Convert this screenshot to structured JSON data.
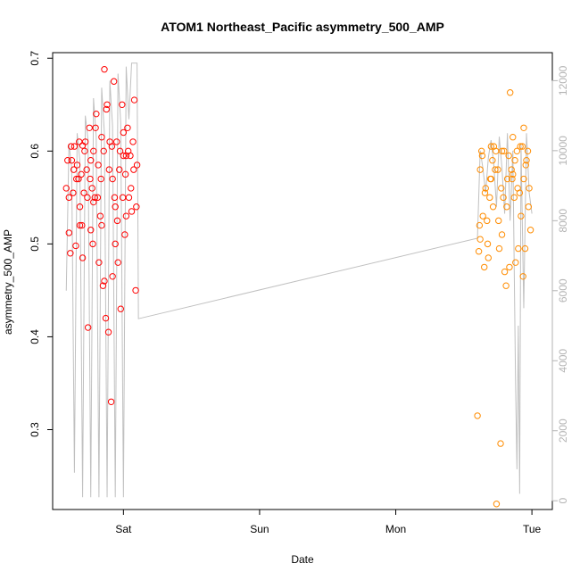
{
  "chart_data": {
    "type": "scatter",
    "title": "ATOM1 Northeast_Pacific asymmetry_500_AMP",
    "xlabel": "Date",
    "ylabel": "asymmetry_500_AMP",
    "x_ticks": [
      {
        "label": "Sat",
        "value": 1.0
      },
      {
        "label": "Sun",
        "value": 2.0
      },
      {
        "label": "Mon",
        "value": 3.0
      },
      {
        "label": "Tue",
        "value": 4.0
      }
    ],
    "xlim": [
      0.48,
      4.15
    ],
    "ylim": [
      0.214,
      0.706
    ],
    "y_ticks": [
      0.3,
      0.4,
      0.5,
      0.6,
      0.7
    ],
    "y2lim": [
      -250,
      12800
    ],
    "y2_ticks": [
      0,
      2000,
      4000,
      6000,
      8000,
      10000,
      12000
    ],
    "grid": false,
    "series": [
      {
        "color": "#ff0000",
        "marker": "open-circle",
        "points": [
          [
            0.58,
            0.56
          ],
          [
            0.59,
            0.59
          ],
          [
            0.6,
            0.512
          ],
          [
            0.61,
            0.49
          ],
          [
            0.62,
            0.59
          ],
          [
            0.63,
            0.555
          ],
          [
            0.64,
            0.605
          ],
          [
            0.65,
            0.498
          ],
          [
            0.66,
            0.585
          ],
          [
            0.67,
            0.57
          ],
          [
            0.68,
            0.52
          ],
          [
            0.69,
            0.575
          ],
          [
            0.7,
            0.606
          ],
          [
            0.71,
            0.555
          ],
          [
            0.72,
            0.61
          ],
          [
            0.73,
            0.58
          ],
          [
            0.74,
            0.41
          ],
          [
            0.75,
            0.625
          ],
          [
            0.76,
            0.515
          ],
          [
            0.77,
            0.56
          ],
          [
            0.78,
            0.6
          ],
          [
            0.79,
            0.55
          ],
          [
            0.8,
            0.64
          ],
          [
            0.81,
            0.55
          ],
          [
            0.82,
            0.48
          ],
          [
            0.83,
            0.53
          ],
          [
            0.84,
            0.615
          ],
          [
            0.85,
            0.455
          ],
          [
            0.86,
            0.688
          ],
          [
            0.87,
            0.42
          ],
          [
            0.88,
            0.65
          ],
          [
            0.89,
            0.405
          ],
          [
            0.9,
            0.61
          ],
          [
            0.91,
            0.33
          ],
          [
            0.92,
            0.465
          ],
          [
            0.93,
            0.675
          ],
          [
            0.94,
            0.54
          ],
          [
            0.95,
            0.61
          ],
          [
            0.96,
            0.48
          ],
          [
            0.97,
            0.58
          ],
          [
            0.98,
            0.43
          ],
          [
            0.99,
            0.65
          ],
          [
            1.0,
            0.62
          ],
          [
            1.01,
            0.51
          ],
          [
            1.02,
            0.595
          ],
          [
            1.03,
            0.625
          ],
          [
            1.04,
            0.55
          ],
          [
            1.05,
            0.595
          ],
          [
            1.06,
            0.535
          ],
          [
            1.07,
            0.61
          ],
          [
            1.08,
            0.655
          ],
          [
            1.09,
            0.45
          ],
          [
            1.1,
            0.585
          ],
          [
            0.615,
            0.605
          ],
          [
            0.635,
            0.58
          ],
          [
            0.655,
            0.57
          ],
          [
            0.675,
            0.61
          ],
          [
            0.695,
            0.52
          ],
          [
            0.715,
            0.6
          ],
          [
            0.735,
            0.55
          ],
          [
            0.755,
            0.57
          ],
          [
            0.775,
            0.5
          ],
          [
            0.795,
            0.625
          ],
          [
            0.815,
            0.585
          ],
          [
            0.835,
            0.57
          ],
          [
            0.855,
            0.6
          ],
          [
            0.875,
            0.645
          ],
          [
            0.895,
            0.58
          ],
          [
            0.915,
            0.605
          ],
          [
            0.935,
            0.55
          ],
          [
            0.955,
            0.525
          ],
          [
            0.975,
            0.6
          ],
          [
            0.995,
            0.55
          ],
          [
            1.015,
            0.575
          ],
          [
            1.035,
            0.6
          ],
          [
            1.055,
            0.56
          ],
          [
            1.075,
            0.58
          ],
          [
            1.095,
            0.54
          ],
          [
            0.6,
            0.55
          ],
          [
            0.68,
            0.54
          ],
          [
            0.76,
            0.59
          ],
          [
            0.84,
            0.52
          ],
          [
            0.92,
            0.57
          ],
          [
            1.0,
            0.595
          ],
          [
            0.7,
            0.485
          ],
          [
            0.78,
            0.545
          ],
          [
            0.86,
            0.46
          ],
          [
            0.94,
            0.5
          ],
          [
            1.02,
            0.53
          ]
        ]
      },
      {
        "color": "#ff8c00",
        "marker": "open-circle",
        "points": [
          [
            3.6,
            0.315
          ],
          [
            3.61,
            0.492
          ],
          [
            3.62,
            0.505
          ],
          [
            3.63,
            0.6
          ],
          [
            3.64,
            0.53
          ],
          [
            3.65,
            0.475
          ],
          [
            3.66,
            0.56
          ],
          [
            3.67,
            0.525
          ],
          [
            3.68,
            0.485
          ],
          [
            3.69,
            0.55
          ],
          [
            3.7,
            0.57
          ],
          [
            3.71,
            0.59
          ],
          [
            3.72,
            0.605
          ],
          [
            3.73,
            0.58
          ],
          [
            3.74,
            0.22
          ],
          [
            3.75,
            0.58
          ],
          [
            3.76,
            0.495
          ],
          [
            3.77,
            0.285
          ],
          [
            3.78,
            0.51
          ],
          [
            3.79,
            0.55
          ],
          [
            3.8,
            0.47
          ],
          [
            3.81,
            0.455
          ],
          [
            3.82,
            0.57
          ],
          [
            3.83,
            0.595
          ],
          [
            3.84,
            0.663
          ],
          [
            3.85,
            0.58
          ],
          [
            3.86,
            0.615
          ],
          [
            3.87,
            0.55
          ],
          [
            3.88,
            0.48
          ],
          [
            3.89,
            0.6
          ],
          [
            3.9,
            0.495
          ],
          [
            3.91,
            0.555
          ],
          [
            3.92,
            0.53
          ],
          [
            3.93,
            0.605
          ],
          [
            3.94,
            0.57
          ],
          [
            3.95,
            0.495
          ],
          [
            3.96,
            0.59
          ],
          [
            3.97,
            0.6
          ],
          [
            3.98,
            0.56
          ],
          [
            3.99,
            0.515
          ],
          [
            3.615,
            0.52
          ],
          [
            3.635,
            0.595
          ],
          [
            3.655,
            0.555
          ],
          [
            3.675,
            0.5
          ],
          [
            3.695,
            0.57
          ],
          [
            3.715,
            0.54
          ],
          [
            3.735,
            0.6
          ],
          [
            3.755,
            0.525
          ],
          [
            3.775,
            0.56
          ],
          [
            3.795,
            0.6
          ],
          [
            3.815,
            0.54
          ],
          [
            3.835,
            0.475
          ],
          [
            3.855,
            0.57
          ],
          [
            3.875,
            0.59
          ],
          [
            3.895,
            0.56
          ],
          [
            3.915,
            0.605
          ],
          [
            3.935,
            0.465
          ],
          [
            3.955,
            0.585
          ],
          [
            3.975,
            0.54
          ],
          [
            3.62,
            0.58
          ],
          [
            3.7,
            0.605
          ],
          [
            3.78,
            0.6
          ],
          [
            3.86,
            0.575
          ],
          [
            3.94,
            0.625
          ]
        ]
      }
    ],
    "line_series": {
      "color": "#c0c0c0",
      "axis": "right",
      "points": [
        [
          0.58,
          6000
        ],
        [
          0.6,
          10200
        ],
        [
          0.62,
          9500
        ],
        [
          0.64,
          800
        ],
        [
          0.66,
          10500
        ],
        [
          0.68,
          9700
        ],
        [
          0.7,
          100
        ],
        [
          0.72,
          11000
        ],
        [
          0.74,
          10300
        ],
        [
          0.76,
          100
        ],
        [
          0.78,
          11500
        ],
        [
          0.8,
          10400
        ],
        [
          0.82,
          100
        ],
        [
          0.84,
          11800
        ],
        [
          0.86,
          10500
        ],
        [
          0.88,
          100
        ],
        [
          0.9,
          12000
        ],
        [
          0.92,
          10700
        ],
        [
          0.94,
          100
        ],
        [
          0.96,
          12200
        ],
        [
          0.98,
          10800
        ],
        [
          1.0,
          100
        ],
        [
          1.02,
          12400
        ],
        [
          1.04,
          10900
        ],
        [
          1.06,
          12500
        ],
        [
          1.08,
          12500
        ],
        [
          1.1,
          12500
        ],
        [
          1.11,
          5200
        ],
        [
          3.6,
          7500
        ],
        [
          3.62,
          10000
        ],
        [
          3.64,
          9500
        ],
        [
          3.66,
          8800
        ],
        [
          3.68,
          9800
        ],
        [
          3.7,
          10300
        ],
        [
          3.72,
          9600
        ],
        [
          3.74,
          8400
        ],
        [
          3.76,
          10400
        ],
        [
          3.78,
          9500
        ],
        [
          3.8,
          8200
        ],
        [
          3.82,
          10500
        ],
        [
          3.84,
          8000
        ],
        [
          3.86,
          10000
        ],
        [
          3.88,
          3300
        ],
        [
          3.89,
          900
        ],
        [
          3.9,
          5000
        ],
        [
          3.91,
          200
        ],
        [
          3.92,
          10200
        ],
        [
          3.94,
          5500
        ],
        [
          3.96,
          10500
        ],
        [
          3.98,
          8800
        ],
        [
          4.0,
          8200
        ]
      ]
    }
  }
}
